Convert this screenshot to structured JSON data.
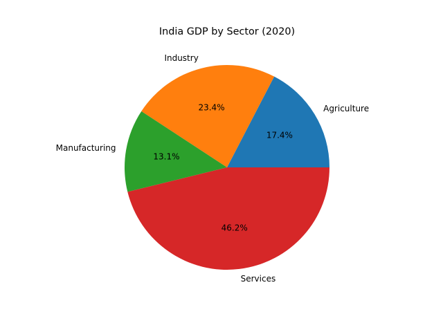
{
  "chart_data": {
    "type": "pie",
    "title": "India GDP by Sector (2020)",
    "categories": [
      "Agriculture",
      "Industry",
      "Manufacturing",
      "Services"
    ],
    "values": [
      17.4,
      23.4,
      13.1,
      46.2
    ],
    "value_labels": [
      "17.4%",
      "23.4%",
      "13.1%",
      "46.2%"
    ],
    "colors": [
      "#1f77b4",
      "#ff7f0e",
      "#2ca02c",
      "#d62728"
    ],
    "start_angle_deg": 0,
    "direction": "counterclockwise",
    "legend": "none"
  }
}
